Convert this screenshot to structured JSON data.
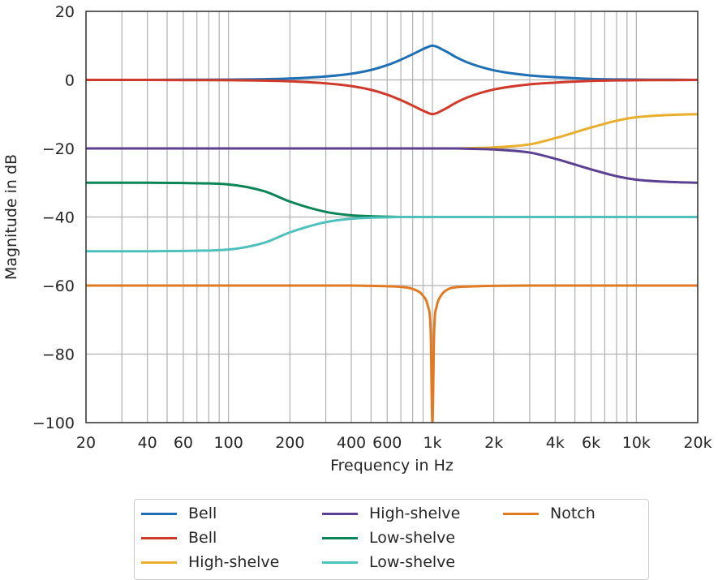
{
  "chart_data": {
    "type": "line",
    "title": "",
    "xlabel": "Frequency in Hz",
    "ylabel": "Magnitude in dB",
    "xscale": "log",
    "xlim": [
      20,
      20000
    ],
    "ylim": [
      -100,
      20
    ],
    "grid": true,
    "legend_position": "bottom-outside",
    "x_ticks": [
      {
        "value": 20,
        "label": "20"
      },
      {
        "value": 40,
        "label": "40"
      },
      {
        "value": 60,
        "label": "60"
      },
      {
        "value": 100,
        "label": "100"
      },
      {
        "value": 200,
        "label": "200"
      },
      {
        "value": 400,
        "label": "400"
      },
      {
        "value": 600,
        "label": "600"
      },
      {
        "value": 1000,
        "label": "1k"
      },
      {
        "value": 2000,
        "label": "2k"
      },
      {
        "value": 4000,
        "label": "4k"
      },
      {
        "value": 6000,
        "label": "6k"
      },
      {
        "value": 10000,
        "label": "10k"
      },
      {
        "value": 20000,
        "label": "20k"
      }
    ],
    "y_ticks": [
      {
        "value": 20,
        "label": "20"
      },
      {
        "value": 0,
        "label": "0"
      },
      {
        "value": -20,
        "label": "−20"
      },
      {
        "value": -40,
        "label": "−40"
      },
      {
        "value": -60,
        "label": "−60"
      },
      {
        "value": -80,
        "label": "−80"
      },
      {
        "value": -100,
        "label": "−100"
      }
    ],
    "x": [
      20,
      40,
      60,
      100,
      150,
      200,
      300,
      400,
      500,
      600,
      700,
      800,
      900,
      950,
      980,
      1000,
      1020,
      1050,
      1100,
      1200,
      1300,
      1500,
      2000,
      3000,
      4000,
      6000,
      8000,
      10000,
      15000,
      20000
    ],
    "series": [
      {
        "name": "Bell",
        "color": "#1f6fb4",
        "values": [
          0,
          0,
          0.05,
          0.1,
          0.2,
          0.4,
          1.0,
          1.8,
          2.9,
          4.3,
          5.9,
          7.5,
          9.0,
          9.6,
          9.9,
          10,
          9.9,
          9.7,
          9.1,
          7.9,
          6.7,
          5.0,
          2.8,
          1.3,
          0.8,
          0.3,
          0.15,
          0.1,
          0.05,
          0
        ]
      },
      {
        "name": "Bell",
        "color": "#d03a2b",
        "values": [
          0,
          0,
          -0.05,
          -0.1,
          -0.2,
          -0.4,
          -1.0,
          -1.8,
          -2.9,
          -4.3,
          -5.9,
          -7.5,
          -9.0,
          -9.6,
          -9.9,
          -10,
          -9.9,
          -9.7,
          -9.1,
          -7.9,
          -6.7,
          -5.0,
          -2.8,
          -1.3,
          -0.8,
          -0.3,
          -0.15,
          -0.1,
          -0.05,
          0
        ]
      },
      {
        "name": "High-shelve",
        "color": "#e9ae2c",
        "values": [
          -20,
          -20,
          -20,
          -20,
          -20,
          -20,
          -20,
          -20,
          -20,
          -20,
          -20,
          -20,
          -20,
          -20,
          -20,
          -20,
          -20,
          -20,
          -20,
          -20,
          -20,
          -19.9,
          -19.7,
          -18.8,
          -17.0,
          -13.9,
          -11.9,
          -10.9,
          -10.2,
          -10
        ]
      },
      {
        "name": "High-shelve",
        "color": "#5c4192",
        "values": [
          -20,
          -20,
          -20,
          -20,
          -20,
          -20,
          -20,
          -20,
          -20,
          -20,
          -20,
          -20,
          -20,
          -20,
          -20,
          -20,
          -20,
          -20,
          -20,
          -20,
          -20,
          -20.1,
          -20.3,
          -21.2,
          -23.0,
          -26.1,
          -28.1,
          -29.1,
          -29.8,
          -30
        ]
      },
      {
        "name": "Low-shelve",
        "color": "#0b8456",
        "values": [
          -30,
          -30,
          -30.1,
          -30.5,
          -32.5,
          -35.5,
          -38.5,
          -39.5,
          -39.8,
          -39.9,
          -40,
          -40,
          -40,
          -40,
          -40,
          -40,
          -40,
          -40,
          -40,
          -40,
          -40,
          -40,
          -40,
          -40,
          -40,
          -40,
          -40,
          -40,
          -40,
          -40
        ]
      },
      {
        "name": "Low-shelve",
        "color": "#4fc1bd",
        "values": [
          -50,
          -50,
          -49.9,
          -49.5,
          -47.5,
          -44.5,
          -41.5,
          -40.5,
          -40.2,
          -40.1,
          -40,
          -40,
          -40,
          -40,
          -40,
          -40,
          -40,
          -40,
          -40,
          -40,
          -40,
          -40,
          -40,
          -40,
          -40,
          -40,
          -40,
          -40,
          -40,
          -40
        ]
      },
      {
        "name": "Notch",
        "color": "#e07b23",
        "values": [
          -60,
          -60,
          -60,
          -60,
          -60,
          -60,
          -60,
          -60,
          -60.1,
          -60.2,
          -60.4,
          -61.0,
          -63.0,
          -66.0,
          -73.0,
          -100,
          -73.0,
          -66.0,
          -63.0,
          -61.0,
          -60.5,
          -60.3,
          -60.1,
          -60,
          -60,
          -60,
          -60,
          -60,
          -60,
          -60
        ]
      }
    ]
  }
}
